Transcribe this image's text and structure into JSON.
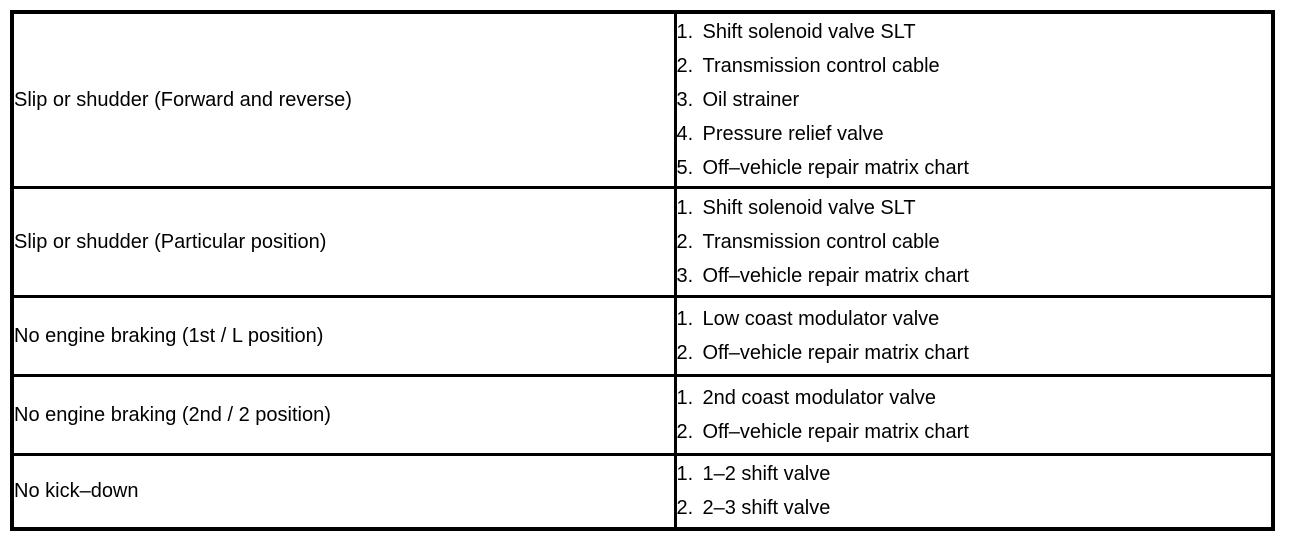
{
  "table": {
    "columns": [
      "symptom",
      "suspect_areas"
    ],
    "rows": [
      {
        "symptom": "Slip or shudder (Forward and reverse)",
        "suspect_areas": [
          {
            "num": "1.",
            "label": "Shift solenoid valve SLT"
          },
          {
            "num": "2.",
            "label": "Transmission control cable"
          },
          {
            "num": "3.",
            "label": "Oil strainer"
          },
          {
            "num": "4.",
            "label": "Pressure relief valve"
          },
          {
            "num": "5.",
            "label": "Off–vehicle repair matrix chart"
          }
        ]
      },
      {
        "symptom": "Slip or shudder (Particular position)",
        "suspect_areas": [
          {
            "num": "1.",
            "label": "Shift solenoid valve SLT"
          },
          {
            "num": "2.",
            "label": "Transmission control cable"
          },
          {
            "num": "3.",
            "label": "Off–vehicle repair matrix chart"
          }
        ]
      },
      {
        "symptom": "No engine braking (1st / L position)",
        "suspect_areas": [
          {
            "num": "1.",
            "label": "Low coast modulator valve"
          },
          {
            "num": "2.",
            "label": "Off–vehicle repair matrix chart"
          }
        ]
      },
      {
        "symptom": "No engine braking (2nd / 2 position)",
        "suspect_areas": [
          {
            "num": "1.",
            "label": "2nd coast modulator valve"
          },
          {
            "num": "2.",
            "label": "Off–vehicle repair matrix chart"
          }
        ]
      },
      {
        "symptom": "No kick–down",
        "suspect_areas": [
          {
            "num": "1.",
            "label": "1–2 shift valve"
          },
          {
            "num": "2.",
            "label": "2–3 shift valve"
          }
        ]
      }
    ]
  },
  "colors": {
    "border": "#000000",
    "text": "#000000",
    "background": "#ffffff"
  }
}
